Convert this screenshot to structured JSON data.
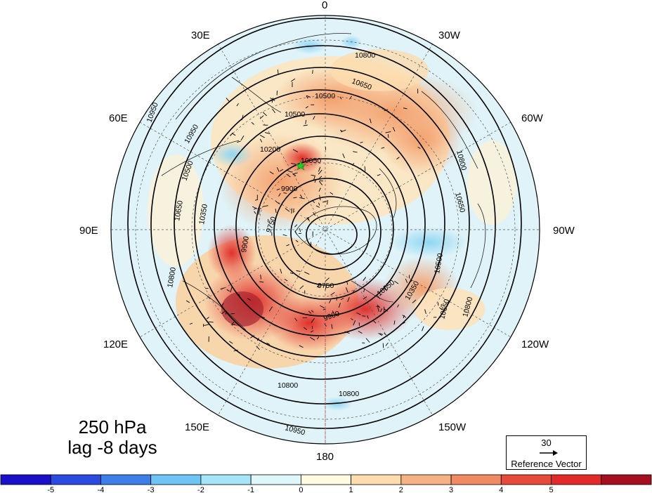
{
  "map": {
    "projection": "north-polar-stereographic",
    "variable_shading": "anomaly (shaded)",
    "contour_levels": [
      9600,
      9750,
      9900,
      10050,
      10200,
      10350,
      10500,
      10650,
      10800,
      10950
    ],
    "contour_labels_visible": [
      "10800",
      "10650",
      "10500",
      "10350",
      "10200",
      "10050",
      "9900",
      "9750",
      "9600",
      "10950"
    ],
    "marker": {
      "type": "star",
      "color": "#22cc22"
    }
  },
  "longitude_labels": {
    "top": "0",
    "top_left": "30E",
    "top_right": "30W",
    "upper_left": "60E",
    "upper_right": "60W",
    "left": "90E",
    "right": "90W",
    "lower_left": "120E",
    "lower_right": "120W",
    "bottom_left": "150E",
    "bottom_right": "150W",
    "bottom": "180"
  },
  "title": {
    "level": "250 hPa",
    "lag": "lag -8 days"
  },
  "reference_vector": {
    "value": "30",
    "label": "Reference Vector"
  },
  "colorbar": {
    "colors": [
      "#1a10c8",
      "#2a4ae0",
      "#3c7fe8",
      "#6ec4f5",
      "#a6e4f8",
      "#dff7fb",
      "#fffbe0",
      "#fddcae",
      "#f6b282",
      "#ef8a63",
      "#e64a3a",
      "#e32a2a",
      "#a50f1f"
    ],
    "tick_labels": [
      "-5",
      "-4",
      "-3",
      "-2",
      "-1",
      "0",
      "1",
      "2",
      "3",
      "4",
      "5"
    ]
  }
}
